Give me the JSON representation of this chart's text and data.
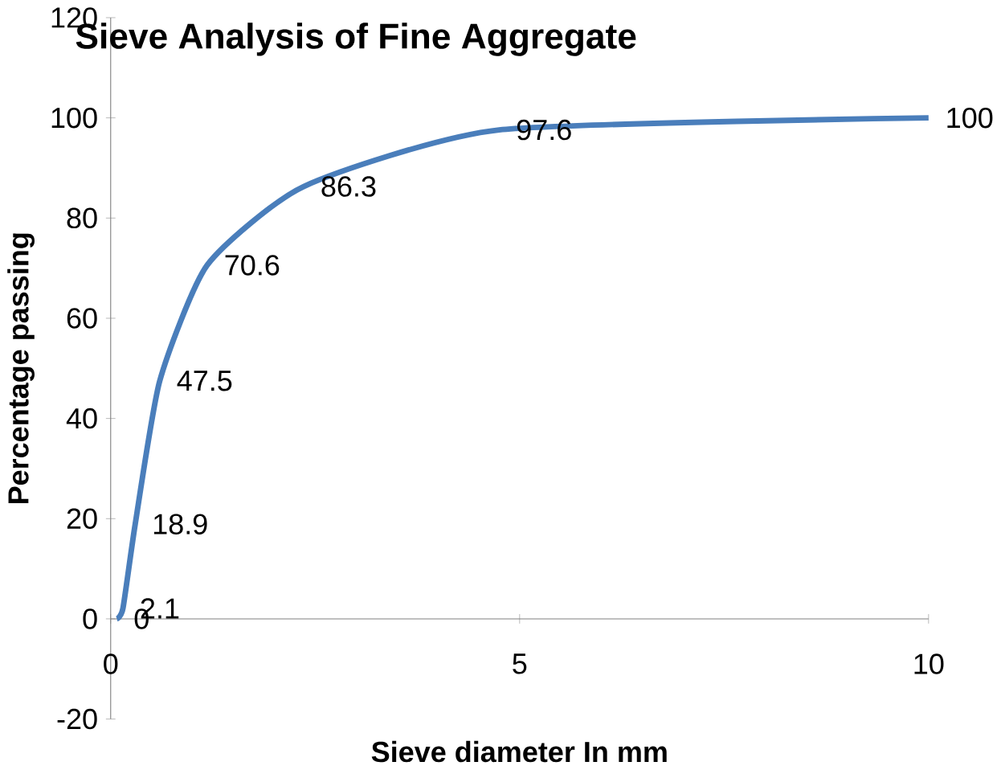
{
  "chart_data": {
    "type": "line",
    "title": "Sieve Analysis of Fine Aggregate",
    "xlabel": "Sieve diameter  In mm",
    "ylabel": "Percentage passing",
    "x": [
      0.075,
      0.15,
      0.3,
      0.6,
      1.18,
      2.36,
      4.75,
      10
    ],
    "series": [
      {
        "color": "#4a7ebb",
        "values": [
          0,
          2.1,
          18.9,
          47.5,
          70.6,
          86.3,
          97.6,
          100
        ]
      }
    ],
    "xlim": [
      0,
      10
    ],
    "xticks": [
      0,
      5,
      10
    ],
    "ylim": [
      -20,
      120
    ],
    "yticks": [
      -20,
      0,
      20,
      40,
      60,
      80,
      100,
      120
    ],
    "data_labels": true,
    "marker": "none",
    "grid": false
  }
}
